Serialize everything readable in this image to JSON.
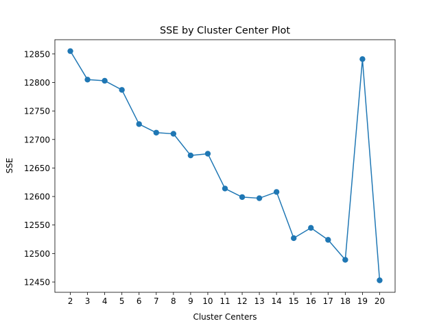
{
  "chart_data": {
    "type": "line",
    "title": "SSE by Cluster Center Plot",
    "xlabel": "Cluster Centers",
    "ylabel": "SSE",
    "x": [
      2,
      3,
      4,
      5,
      6,
      7,
      8,
      9,
      10,
      11,
      12,
      13,
      14,
      15,
      16,
      17,
      18,
      19,
      20
    ],
    "xticks": [
      "2",
      "3",
      "4",
      "5",
      "6",
      "7",
      "8",
      "9",
      "10",
      "11",
      "12",
      "13",
      "14",
      "15",
      "16",
      "17",
      "18",
      "19",
      "20"
    ],
    "yticks": [
      12450,
      12500,
      12550,
      12600,
      12650,
      12700,
      12750,
      12800,
      12850
    ],
    "xlim": [
      1.1,
      20.9
    ],
    "ylim": [
      12432,
      12875
    ],
    "grid": false,
    "series": [
      {
        "values": [
          12855,
          12805,
          12803,
          12787,
          12727,
          12712,
          12710,
          12672,
          12675,
          12614,
          12599,
          12597,
          12608,
          12527,
          12545,
          12524,
          12489,
          12841,
          12453
        ],
        "color": "#1f77b4",
        "marker": "circle"
      }
    ]
  }
}
